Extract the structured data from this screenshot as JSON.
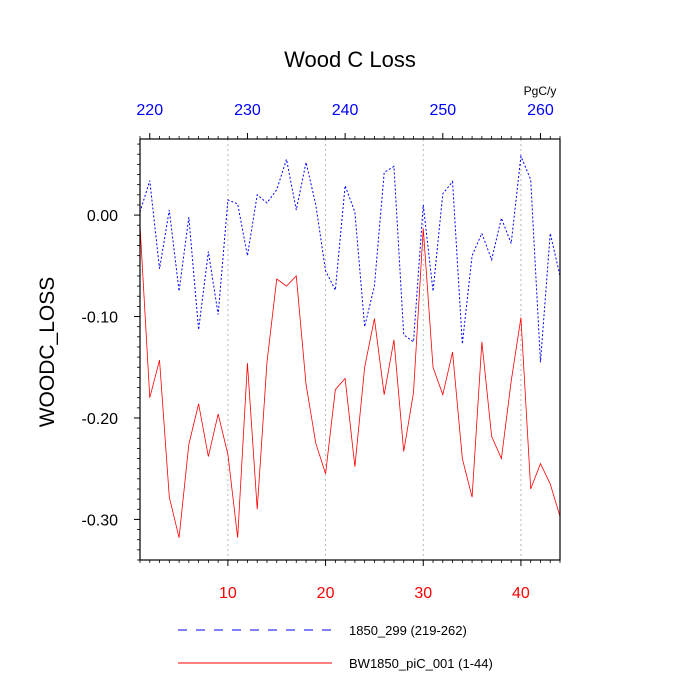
{
  "chart_data": {
    "type": "line",
    "title": "Wood C Loss",
    "ylabel": "WOODC_LOSS",
    "units": "PgC/y",
    "ylim": [
      -0.34,
      0.075
    ],
    "y_ticks": [
      {
        "value": 0.0,
        "label": "0.00"
      },
      {
        "value": -0.1,
        "label": "-0.10"
      },
      {
        "value": -0.2,
        "label": "-0.20"
      },
      {
        "value": -0.3,
        "label": "-0.30"
      }
    ],
    "xlim_bottom": [
      1,
      44
    ],
    "x_ticks_bottom": [
      {
        "value": 10,
        "label": "10"
      },
      {
        "value": 20,
        "label": "20"
      },
      {
        "value": 30,
        "label": "30"
      },
      {
        "value": 40,
        "label": "40"
      }
    ],
    "xlim_top": [
      219,
      262
    ],
    "x_ticks_top": [
      {
        "value": 220,
        "label": "220"
      },
      {
        "value": 230,
        "label": "230"
      },
      {
        "value": 240,
        "label": "240"
      },
      {
        "value": 250,
        "label": "250"
      },
      {
        "value": 260,
        "label": "260"
      }
    ],
    "gridlines_x": [
      10,
      20,
      30,
      40
    ],
    "series": [
      {
        "name": "1850_299 (219-262)",
        "color": "#0000ff",
        "dashed": true,
        "x": [
          219,
          220,
          221,
          222,
          223,
          224,
          225,
          226,
          227,
          228,
          229,
          230,
          231,
          232,
          233,
          234,
          235,
          236,
          237,
          238,
          239,
          240,
          241,
          242,
          243,
          244,
          245,
          246,
          247,
          248,
          249,
          250,
          251,
          252,
          253,
          254,
          255,
          256,
          257,
          258,
          259,
          260,
          261,
          262
        ],
        "values": [
          0.003,
          0.034,
          -0.053,
          0.005,
          -0.075,
          -0.002,
          -0.113,
          -0.036,
          -0.098,
          0.015,
          0.011,
          -0.04,
          0.02,
          0.012,
          0.025,
          0.055,
          0.005,
          0.052,
          0.01,
          -0.055,
          -0.074,
          0.029,
          0.003,
          -0.11,
          -0.07,
          0.042,
          0.048,
          -0.118,
          -0.125,
          0.01,
          -0.075,
          0.021,
          0.033,
          -0.127,
          -0.04,
          -0.018,
          -0.044,
          -0.003,
          -0.028,
          0.058,
          0.035,
          -0.145,
          -0.018,
          -0.06
        ]
      },
      {
        "name": "BW1850_piC_001 (1-44)",
        "color": "#ff0000",
        "dashed": false,
        "x": [
          1,
          2,
          3,
          4,
          5,
          6,
          7,
          8,
          9,
          10,
          11,
          12,
          13,
          14,
          15,
          16,
          17,
          18,
          19,
          20,
          21,
          22,
          23,
          24,
          25,
          26,
          27,
          28,
          29,
          30,
          31,
          32,
          33,
          34,
          35,
          36,
          37,
          38,
          39,
          40,
          41,
          42,
          43,
          44
        ],
        "values": [
          -0.01,
          -0.18,
          -0.143,
          -0.278,
          -0.318,
          -0.226,
          -0.186,
          -0.238,
          -0.196,
          -0.236,
          -0.318,
          -0.146,
          -0.29,
          -0.145,
          -0.063,
          -0.07,
          -0.06,
          -0.167,
          -0.225,
          -0.255,
          -0.172,
          -0.161,
          -0.248,
          -0.15,
          -0.102,
          -0.177,
          -0.123,
          -0.233,
          -0.175,
          -0.013,
          -0.15,
          -0.177,
          -0.135,
          -0.24,
          -0.278,
          -0.125,
          -0.218,
          -0.24,
          -0.164,
          -0.101,
          -0.27,
          -0.245,
          -0.265,
          -0.297
        ]
      }
    ]
  }
}
